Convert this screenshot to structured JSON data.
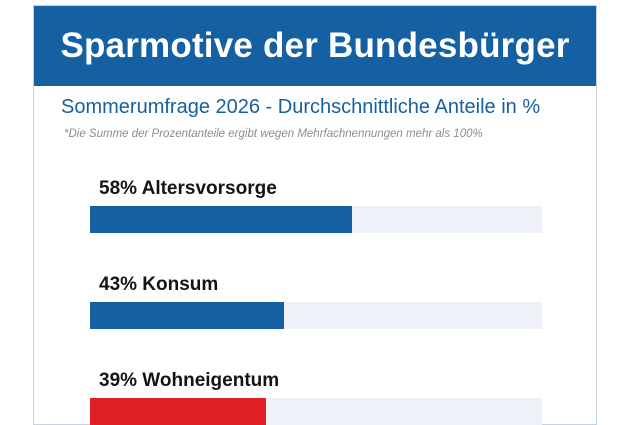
{
  "header": {
    "title": "Sparmotive der Bundesbürger"
  },
  "subtitle": "Sommerumfrage 2026 - Durchschnittliche Anteile in %",
  "footnote": "*Die Summe der Prozentanteile ergibt wegen Mehrfachnennungen mehr als 100%",
  "colors": {
    "header_bg": "#1560a3",
    "bar_blue": "#1560a3",
    "bar_red": "#e01f26",
    "track": "#eef2f8"
  },
  "chart_data": {
    "type": "bar",
    "title": "Sparmotive der Bundesbürger",
    "subtitle": "Sommerumfrage 2026 - Durchschnittliche Anteile in %",
    "unit": "%",
    "ylim": [
      0,
      100
    ],
    "categories": [
      "Altersvorsorge",
      "Konsum",
      "Wohneigentum"
    ],
    "values": [
      58,
      43,
      39
    ],
    "labels": [
      "58% Altersvorsorge",
      "43% Konsum",
      "39% Wohneigentum"
    ],
    "bar_colors": [
      "#1560a3",
      "#1560a3",
      "#e01f26"
    ]
  }
}
